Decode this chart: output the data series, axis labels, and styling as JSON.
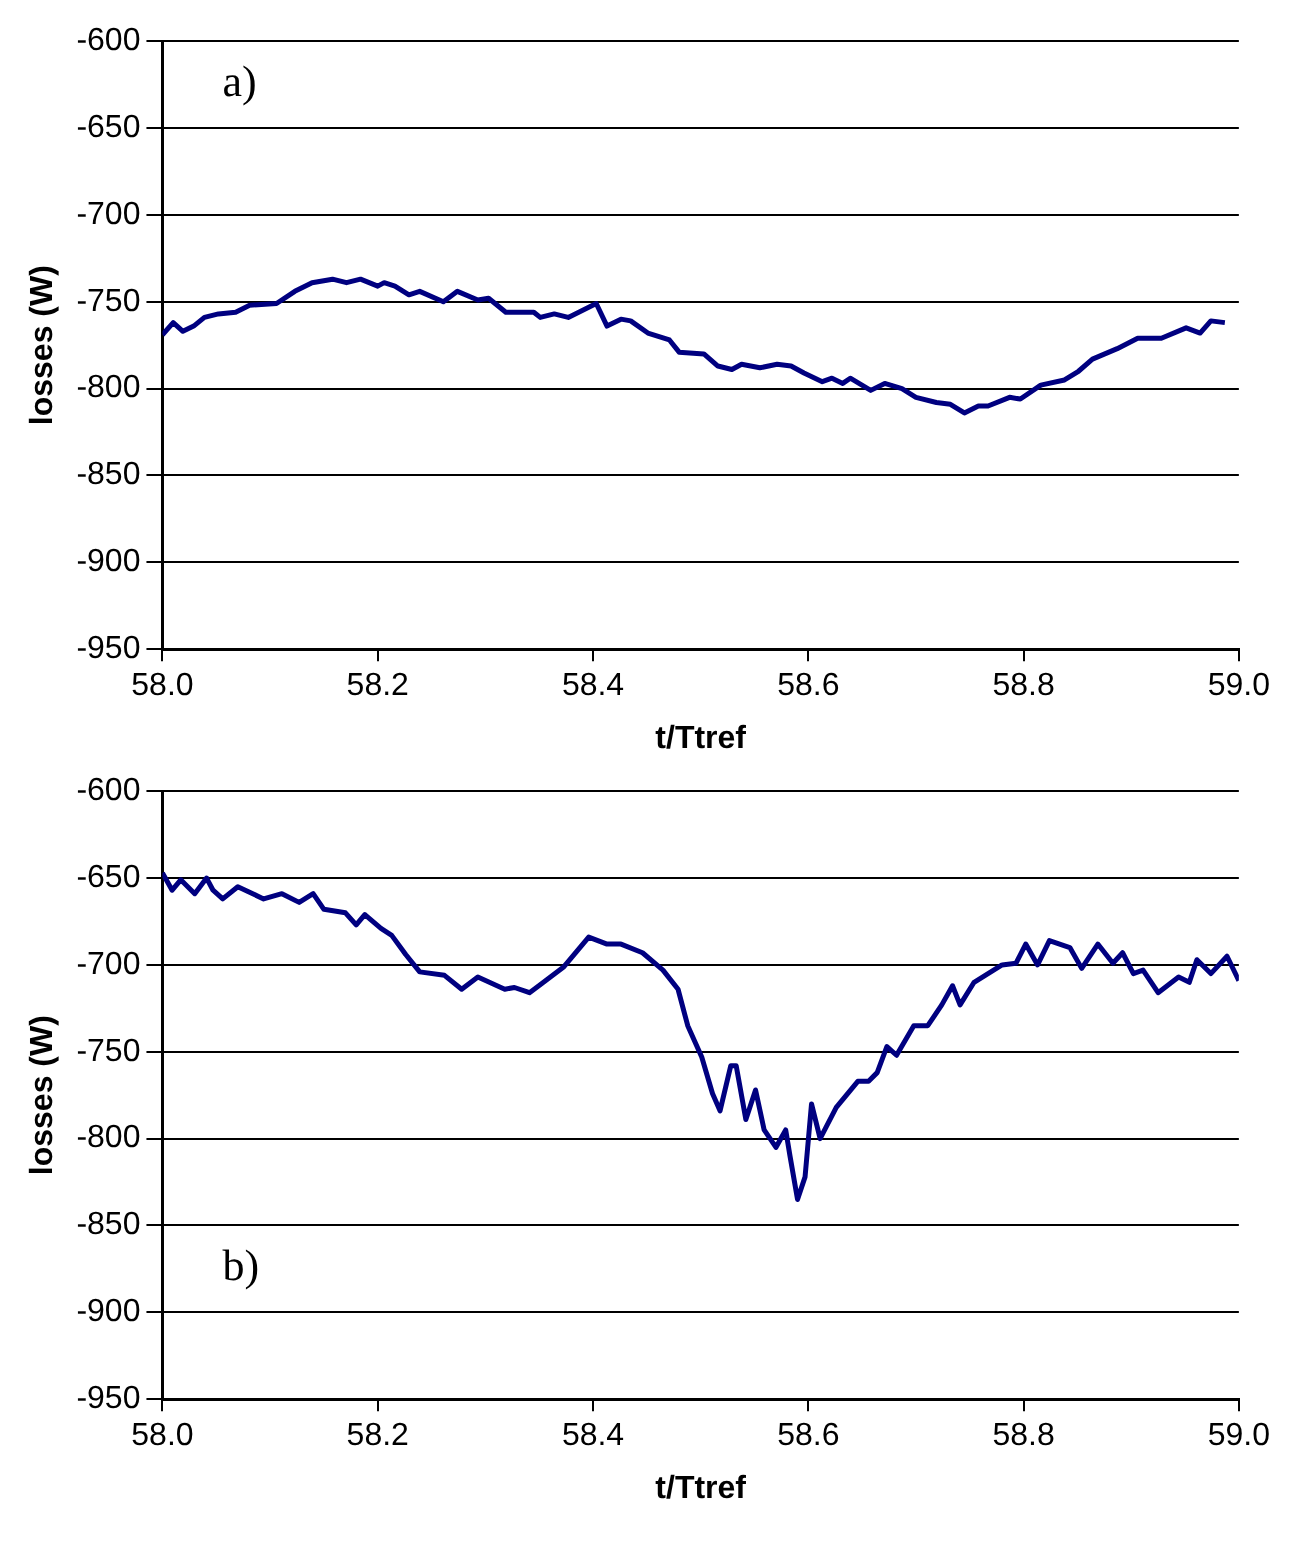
{
  "chart_data": [
    {
      "type": "line",
      "xlabel": "t/Ttref",
      "ylabel": "losses (W)",
      "annotations": [
        "a)"
      ],
      "xlim": [
        58,
        59
      ],
      "xticks": [
        {
          "value": 58,
          "label": "58.0"
        },
        {
          "value": 58.2,
          "label": "58.2"
        },
        {
          "value": 58.4,
          "label": "58.4"
        },
        {
          "value": 58.6,
          "label": "58.6"
        },
        {
          "value": 58.8,
          "label": "58.8"
        },
        {
          "value": 59,
          "label": "59.0"
        }
      ],
      "ylim": [
        -950,
        -600
      ],
      "yticks": [
        -950,
        -900,
        -850,
        -800,
        -750,
        -700,
        -650,
        -600
      ],
      "grid": "y",
      "legend": false,
      "marker": "none",
      "line_style": "solid",
      "series": [
        {
          "color": "#000080",
          "x": [
            58.0,
            58.01,
            58.019,
            58.029,
            58.039,
            58.052,
            58.068,
            58.081,
            58.106,
            58.123,
            58.139,
            58.158,
            58.171,
            58.184,
            58.2,
            58.206,
            58.216,
            58.229,
            58.239,
            58.261,
            58.274,
            58.293,
            58.303,
            58.319,
            58.345,
            58.351,
            58.364,
            58.377,
            58.403,
            58.413,
            58.426,
            58.435,
            58.451,
            58.471,
            58.48,
            58.503,
            58.516,
            58.529,
            58.538,
            58.555,
            58.571,
            58.584,
            58.596,
            58.613,
            58.622,
            58.632,
            58.639,
            58.658,
            58.671,
            58.687,
            58.7,
            58.719,
            58.732,
            58.745,
            58.758,
            58.767,
            58.787,
            58.797,
            58.816,
            58.838,
            58.851,
            58.864,
            58.887,
            58.906,
            58.928,
            58.951,
            58.964,
            58.974,
            58.987
          ],
          "values": [
            -769,
            -762,
            -767,
            -764,
            -759,
            -757,
            -756,
            -752,
            -751,
            -744,
            -739,
            -737,
            -739,
            -737,
            -741,
            -739,
            -741,
            -746,
            -744,
            -750,
            -744,
            -749,
            -748,
            -756,
            -756,
            -759,
            -757,
            -759,
            -751,
            -764,
            -760,
            -761,
            -768,
            -772,
            -779,
            -780,
            -787,
            -789,
            -786,
            -788,
            -786,
            -787,
            -791,
            -796,
            -794,
            -797,
            -794,
            -801,
            -797,
            -800,
            -805,
            -808,
            -809,
            -814,
            -810,
            -810,
            -805,
            -806,
            -798,
            -795,
            -790,
            -783,
            -777,
            -771,
            -771,
            -765,
            -768,
            -761,
            -762
          ]
        }
      ]
    },
    {
      "type": "line",
      "xlabel": "t/Ttref",
      "ylabel": "losses (W)",
      "annotations": [
        "b)"
      ],
      "xlim": [
        58,
        59
      ],
      "xticks": [
        {
          "value": 58,
          "label": "58.0"
        },
        {
          "value": 58.2,
          "label": "58.2"
        },
        {
          "value": 58.4,
          "label": "58.4"
        },
        {
          "value": 58.6,
          "label": "58.6"
        },
        {
          "value": 58.8,
          "label": "58.8"
        },
        {
          "value": 59,
          "label": "59.0"
        }
      ],
      "ylim": [
        -950,
        -600
      ],
      "yticks": [
        -950,
        -900,
        -850,
        -800,
        -750,
        -700,
        -650,
        -600
      ],
      "grid": "y",
      "legend": false,
      "marker": "none",
      "line_style": "solid",
      "series": [
        {
          "color": "#000080",
          "x": [
            58.0,
            58.009,
            58.017,
            58.03,
            58.041,
            58.047,
            58.056,
            58.07,
            58.094,
            58.111,
            58.127,
            58.14,
            58.15,
            58.17,
            58.18,
            58.188,
            58.203,
            58.213,
            58.226,
            58.239,
            58.262,
            58.278,
            58.293,
            58.318,
            58.327,
            58.341,
            58.354,
            58.373,
            58.396,
            58.413,
            58.426,
            58.446,
            58.465,
            58.479,
            58.488,
            58.501,
            58.511,
            58.518,
            58.528,
            58.533,
            58.542,
            58.551,
            58.559,
            58.57,
            58.579,
            58.583,
            58.59,
            58.597,
            58.603,
            58.611,
            58.626,
            58.646,
            58.656,
            58.664,
            58.673,
            58.682,
            58.698,
            58.711,
            58.724,
            58.734,
            58.741,
            58.754,
            58.78,
            58.793,
            58.802,
            58.813,
            58.824,
            58.843,
            58.854,
            58.869,
            58.883,
            58.892,
            58.902,
            58.911,
            58.925,
            58.944,
            58.954,
            58.961,
            58.974,
            58.989,
            59.0
          ],
          "values": [
            -647,
            -657,
            -651,
            -659,
            -650,
            -657,
            -662,
            -655,
            -662,
            -659,
            -664,
            -659,
            -668,
            -670,
            -677,
            -671,
            -679,
            -683,
            -694,
            -704,
            -706,
            -714,
            -707,
            -714,
            -713,
            -716,
            -710,
            -701,
            -684,
            -688,
            -688,
            -693,
            -703,
            -714,
            -735,
            -753,
            -774,
            -784,
            -758,
            -758,
            -789,
            -772,
            -795,
            -805,
            -795,
            -810,
            -835,
            -822,
            -780,
            -800,
            -782,
            -767,
            -767,
            -762,
            -747,
            -752,
            -735,
            -735,
            -723,
            -712,
            -723,
            -710,
            -700,
            -699,
            -688,
            -700,
            -686,
            -690,
            -702,
            -688,
            -699,
            -693,
            -705,
            -703,
            -716,
            -707,
            -710,
            -697,
            -705,
            -695,
            -709
          ]
        }
      ]
    }
  ]
}
